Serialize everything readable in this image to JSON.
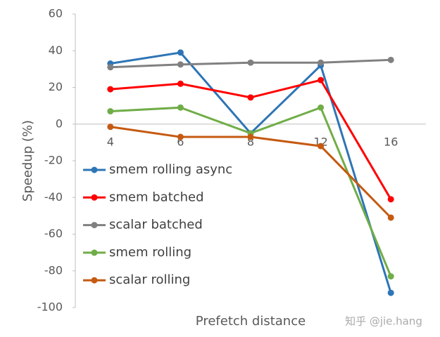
{
  "chart_data": {
    "type": "line",
    "xlabel": "Prefetch distance",
    "ylabel": "Speedup (%)",
    "categories": [
      "4",
      "6",
      "8",
      "12",
      "16"
    ],
    "series": [
      {
        "name": "smem rolling async",
        "color": "#2e75b6",
        "values": [
          33,
          39,
          -5,
          32,
          -92
        ]
      },
      {
        "name": "smem batched",
        "color": "#ff0000",
        "values": [
          19,
          22,
          14.5,
          24,
          -41
        ]
      },
      {
        "name": "scalar batched",
        "color": "#808080",
        "values": [
          31,
          32.5,
          33.5,
          33.5,
          35
        ]
      },
      {
        "name": "smem rolling",
        "color": "#70ad47",
        "values": [
          7,
          9,
          -5,
          9,
          -83
        ]
      },
      {
        "name": "scalar rolling",
        "color": "#c55a11",
        "values": [
          -1.5,
          -7,
          -7,
          -12,
          -51
        ]
      }
    ],
    "ylim": [
      -100,
      60
    ],
    "yticks": [
      -100,
      -80,
      -60,
      -40,
      -20,
      0,
      20,
      40,
      60
    ],
    "legend": "left",
    "watermark": "知乎 @jie.hang"
  }
}
